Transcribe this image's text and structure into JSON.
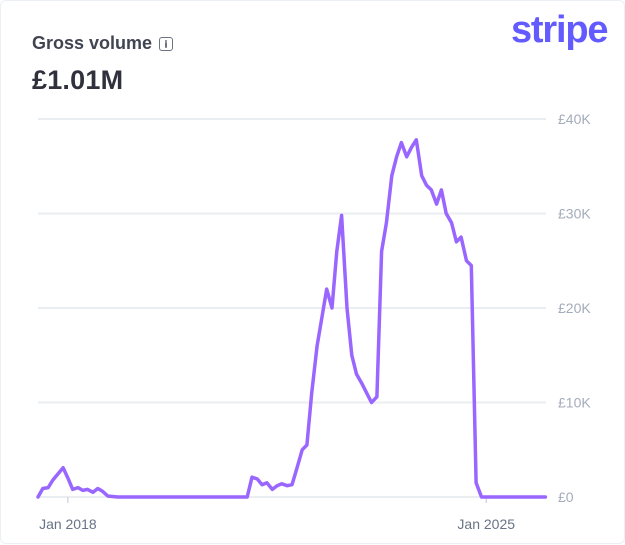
{
  "header": {
    "title": "Gross volume",
    "total": "£1.01M",
    "info_icon": "info-icon",
    "logo": "stripe"
  },
  "colors": {
    "line": "#9966ff",
    "grid": "#ebeef1",
    "brand": "#635bff"
  },
  "chart_data": {
    "type": "line",
    "title": "Gross volume",
    "xlabel": "",
    "ylabel": "",
    "x_ticks": [
      {
        "label": "Jan 2018",
        "value": 2018.0
      },
      {
        "label": "Jan 2025",
        "value": 2025.0
      }
    ],
    "y_ticks": [
      {
        "label": "£0",
        "value": 0
      },
      {
        "label": "£10K",
        "value": 10000
      },
      {
        "label": "£20K",
        "value": 20000
      },
      {
        "label": "£30K",
        "value": 30000
      },
      {
        "label": "£40K",
        "value": 40000
      }
    ],
    "xlim": [
      2017.5,
      2026.0
    ],
    "ylim": [
      0,
      40000
    ],
    "grid": true,
    "series": [
      {
        "name": "",
        "x": [
          2017.5,
          2017.58,
          2017.67,
          2017.75,
          2017.92,
          2018.0,
          2018.08,
          2018.17,
          2018.25,
          2018.33,
          2018.42,
          2018.5,
          2018.58,
          2018.67,
          2018.75,
          2018.83,
          2019.0,
          2019.25,
          2019.5,
          2019.75,
          2020.0,
          2020.25,
          2020.5,
          2020.75,
          2021.0,
          2021.08,
          2021.17,
          2021.25,
          2021.33,
          2021.42,
          2021.5,
          2021.58,
          2021.67,
          2021.75,
          2021.83,
          2021.92,
          2022.0,
          2022.08,
          2022.17,
          2022.25,
          2022.33,
          2022.42,
          2022.5,
          2022.58,
          2022.67,
          2022.75,
          2022.83,
          2022.92,
          2023.0,
          2023.08,
          2023.17,
          2023.25,
          2023.33,
          2023.42,
          2023.5,
          2023.58,
          2023.67,
          2023.75,
          2023.83,
          2023.92,
          2024.0,
          2024.08,
          2024.17,
          2024.25,
          2024.33,
          2024.42,
          2024.5,
          2024.58,
          2024.67,
          2024.75,
          2024.83,
          2024.92,
          2025.0,
          2025.08,
          2025.17,
          2025.25,
          2025.33,
          2025.42,
          2025.5,
          2025.58,
          2025.67,
          2025.75,
          2025.83,
          2025.92,
          2025.99
        ],
        "y": [
          0,
          900,
          1000,
          1800,
          3100,
          2000,
          800,
          1000,
          700,
          800,
          500,
          900,
          600,
          100,
          50,
          0,
          0,
          0,
          0,
          0,
          0,
          0,
          0,
          0,
          0,
          2100,
          1900,
          1300,
          1500,
          800,
          1200,
          1400,
          1200,
          1300,
          3000,
          5000,
          5500,
          11000,
          16000,
          19000,
          22000,
          20000,
          26000,
          29800,
          20000,
          15000,
          13000,
          12000,
          11000,
          10000,
          10600,
          26000,
          29000,
          34000,
          36000,
          37500,
          36000,
          37000,
          37800,
          34000,
          33000,
          32500,
          31000,
          32500,
          30000,
          29000,
          27000,
          27500,
          25000,
          24500,
          1500,
          0,
          0,
          0,
          0,
          0,
          0,
          0,
          0,
          0,
          0,
          0,
          0,
          0,
          0
        ]
      }
    ]
  }
}
